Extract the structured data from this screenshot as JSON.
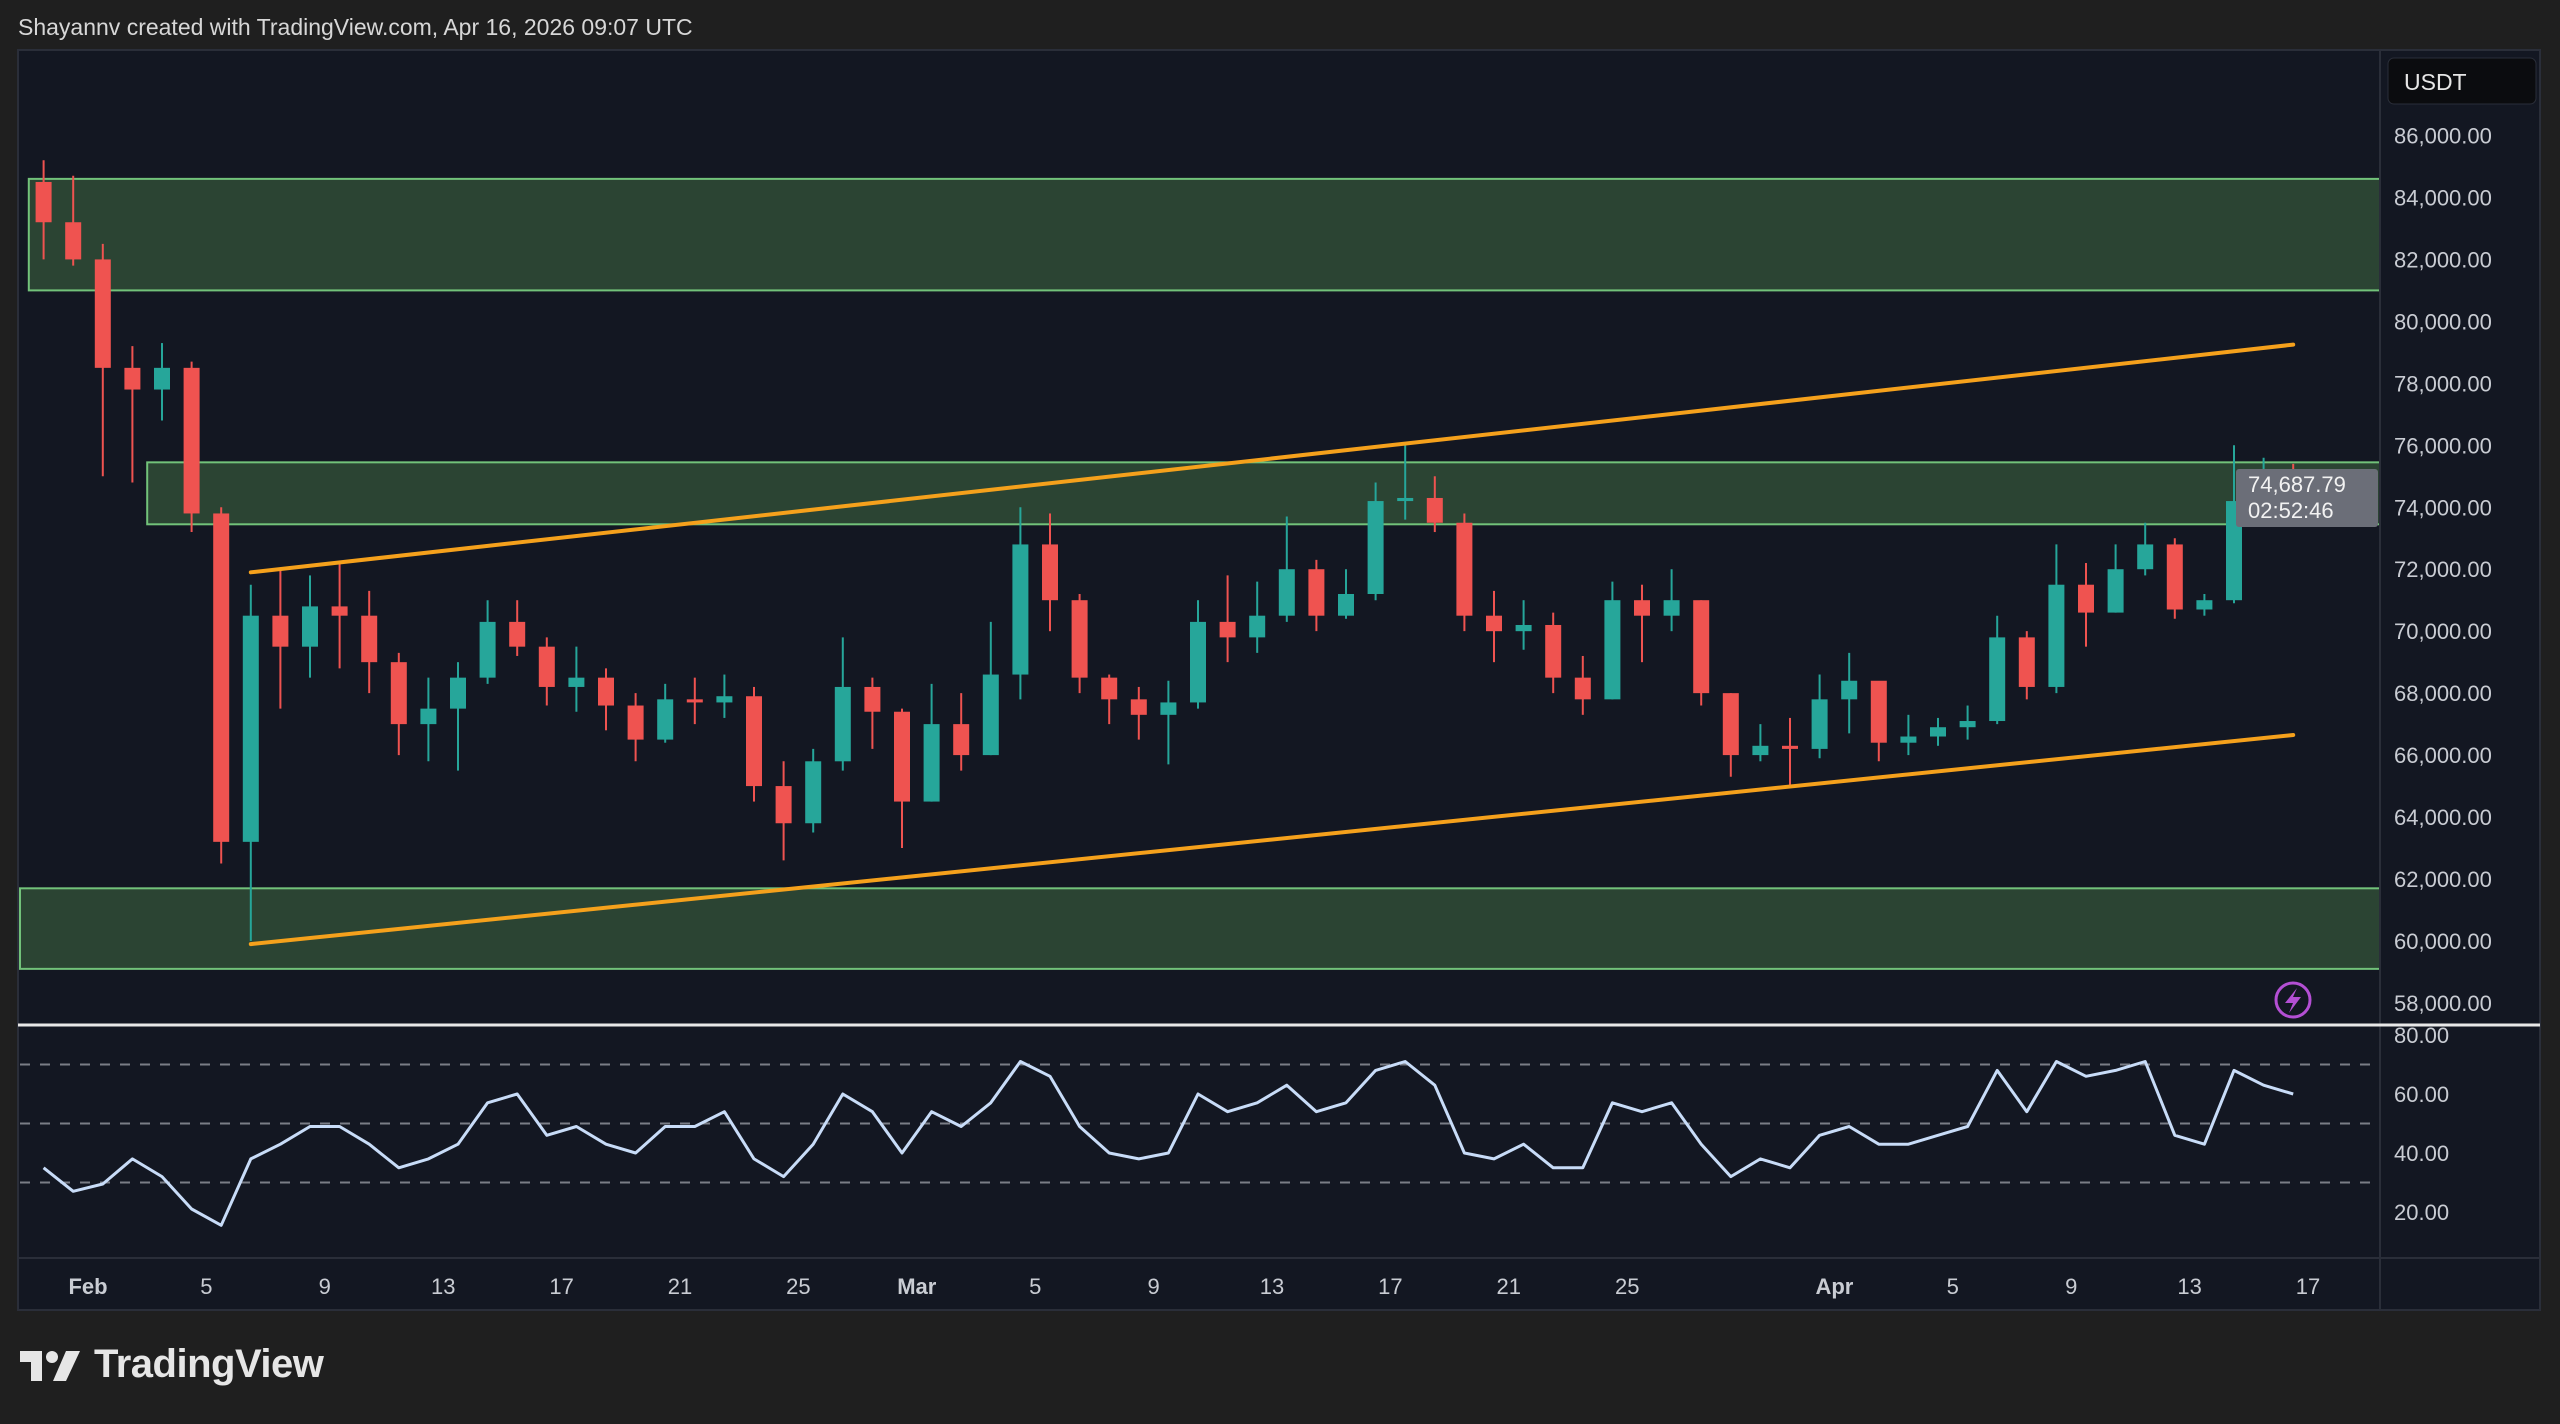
{
  "header": {
    "credit": "Shayannv created with TradingView.com, Apr 16, 2026 09:07 UTC"
  },
  "brand": {
    "logo_text": "TradingView"
  },
  "price_axis": {
    "currency": "USDT",
    "last_price": "74,687.79",
    "countdown": "02:52:46"
  },
  "colors": {
    "up": "#26a69a",
    "down": "#ef5350",
    "zone_fill": "#2b4433",
    "zone_border": "#72c27a",
    "trendline": "#f5a11c",
    "rsi_line": "#c8dcf8",
    "background": "#131722",
    "alert_icon": "#b44fd4"
  },
  "icons": {
    "alert": "lightning-bolt-icon"
  },
  "chart_data": [
    {
      "type": "candlestick",
      "title": "",
      "ylim": [
        57000,
        87500
      ],
      "yticks": [
        58000,
        60000,
        62000,
        64000,
        66000,
        68000,
        70000,
        72000,
        74000,
        76000,
        78000,
        80000,
        82000,
        84000,
        86000
      ],
      "ytick_labels": [
        "58,000.00",
        "60,000.00",
        "62,000.00",
        "64,000.00",
        "66,000.00",
        "68,000.00",
        "70,000.00",
        "72,000.00",
        "74,000.00",
        "76,000.00",
        "78,000.00",
        "80,000.00",
        "82,000.00",
        "84,000.00",
        "86,000.00"
      ],
      "xticks": [
        {
          "date": "2026-02-01",
          "label": "Feb"
        },
        {
          "date": "2026-02-05",
          "label": "5"
        },
        {
          "date": "2026-02-09",
          "label": "9"
        },
        {
          "date": "2026-02-13",
          "label": "13"
        },
        {
          "date": "2026-02-17",
          "label": "17"
        },
        {
          "date": "2026-02-21",
          "label": "21"
        },
        {
          "date": "2026-02-25",
          "label": "25"
        },
        {
          "date": "2026-03-01",
          "label": "Mar"
        },
        {
          "date": "2026-03-05",
          "label": "5"
        },
        {
          "date": "2026-03-09",
          "label": "9"
        },
        {
          "date": "2026-03-13",
          "label": "13"
        },
        {
          "date": "2026-03-17",
          "label": "17"
        },
        {
          "date": "2026-03-21",
          "label": "21"
        },
        {
          "date": "2026-03-25",
          "label": "25"
        },
        {
          "date": "2026-04-01",
          "label": "Apr"
        },
        {
          "date": "2026-04-05",
          "label": "5"
        },
        {
          "date": "2026-04-09",
          "label": "9"
        },
        {
          "date": "2026-04-13",
          "label": "13"
        },
        {
          "date": "2026-04-17",
          "label": "17"
        }
      ],
      "xlim": [
        "2026-01-29",
        "2026-04-19"
      ],
      "candles_columns": [
        "date",
        "open",
        "high",
        "low",
        "close"
      ],
      "candles": [
        [
          "2026-01-30",
          84500,
          85200,
          82000,
          83200
        ],
        [
          "2026-01-31",
          83200,
          84700,
          81800,
          82000
        ],
        [
          "2026-02-01",
          82000,
          82500,
          75000,
          78500
        ],
        [
          "2026-02-02",
          78500,
          79200,
          74800,
          77800
        ],
        [
          "2026-02-03",
          77800,
          79300,
          76800,
          78500
        ],
        [
          "2026-02-04",
          78500,
          78700,
          73200,
          73800
        ],
        [
          "2026-02-05",
          73800,
          74000,
          62500,
          63200
        ],
        [
          "2026-02-06",
          63200,
          71500,
          60000,
          70500
        ],
        [
          "2026-02-07",
          70500,
          72000,
          67500,
          69500
        ],
        [
          "2026-02-08",
          69500,
          71800,
          68500,
          70800
        ],
        [
          "2026-02-09",
          70800,
          72200,
          68800,
          70500
        ],
        [
          "2026-02-10",
          70500,
          71300,
          68000,
          69000
        ],
        [
          "2026-02-11",
          69000,
          69300,
          66000,
          67000
        ],
        [
          "2026-02-12",
          67000,
          68500,
          65800,
          67500
        ],
        [
          "2026-02-13",
          67500,
          69000,
          65500,
          68500
        ],
        [
          "2026-02-14",
          68500,
          71000,
          68300,
          70300
        ],
        [
          "2026-02-15",
          70300,
          71000,
          69200,
          69500
        ],
        [
          "2026-02-16",
          69500,
          69800,
          67600,
          68200
        ],
        [
          "2026-02-17",
          68200,
          69500,
          67400,
          68500
        ],
        [
          "2026-02-18",
          68500,
          68800,
          66800,
          67600
        ],
        [
          "2026-02-19",
          67600,
          68000,
          65800,
          66500
        ],
        [
          "2026-02-20",
          66500,
          68300,
          66400,
          67800
        ],
        [
          "2026-02-21",
          67800,
          68500,
          67000,
          67700
        ],
        [
          "2026-02-22",
          67700,
          68600,
          67200,
          67900
        ],
        [
          "2026-02-23",
          67900,
          68200,
          64500,
          65000
        ],
        [
          "2026-02-24",
          65000,
          65800,
          62600,
          63800
        ],
        [
          "2026-02-25",
          63800,
          66200,
          63500,
          65800
        ],
        [
          "2026-02-26",
          65800,
          69800,
          65500,
          68200
        ],
        [
          "2026-02-27",
          68200,
          68500,
          66200,
          67400
        ],
        [
          "2026-02-28",
          67400,
          67500,
          63000,
          64500
        ],
        [
          "2026-03-01",
          64500,
          68300,
          64500,
          67000
        ],
        [
          "2026-03-02",
          67000,
          68000,
          65500,
          66000
        ],
        [
          "2026-03-03",
          66000,
          70300,
          66000,
          68600
        ],
        [
          "2026-03-04",
          68600,
          74000,
          67800,
          72800
        ],
        [
          "2026-03-05",
          72800,
          73800,
          70000,
          71000
        ],
        [
          "2026-03-06",
          71000,
          71200,
          68000,
          68500
        ],
        [
          "2026-03-07",
          68500,
          68600,
          67000,
          67800
        ],
        [
          "2026-03-08",
          67800,
          68200,
          66500,
          67300
        ],
        [
          "2026-03-09",
          67300,
          68400,
          65700,
          67700
        ],
        [
          "2026-03-10",
          67700,
          71000,
          67500,
          70300
        ],
        [
          "2026-03-11",
          70300,
          71800,
          69000,
          69800
        ],
        [
          "2026-03-12",
          69800,
          71600,
          69300,
          70500
        ],
        [
          "2026-03-13",
          70500,
          73700,
          70300,
          72000
        ],
        [
          "2026-03-14",
          72000,
          72300,
          70000,
          70500
        ],
        [
          "2026-03-15",
          70500,
          72000,
          70400,
          71200
        ],
        [
          "2026-03-16",
          71200,
          74800,
          71000,
          74200
        ],
        [
          "2026-03-17",
          74200,
          76100,
          73600,
          74300
        ],
        [
          "2026-03-18",
          74300,
          75000,
          73200,
          73500
        ],
        [
          "2026-03-19",
          73500,
          73800,
          70000,
          70500
        ],
        [
          "2026-03-20",
          70500,
          71300,
          69000,
          70000
        ],
        [
          "2026-03-21",
          70000,
          71000,
          69400,
          70200
        ],
        [
          "2026-03-22",
          70200,
          70600,
          68000,
          68500
        ],
        [
          "2026-03-23",
          68500,
          69200,
          67300,
          67800
        ],
        [
          "2026-03-24",
          67800,
          71600,
          67800,
          71000
        ],
        [
          "2026-03-25",
          71000,
          71500,
          69000,
          70500
        ],
        [
          "2026-03-26",
          70500,
          72000,
          70000,
          71000
        ],
        [
          "2026-03-27",
          71000,
          71000,
          67600,
          68000
        ],
        [
          "2026-03-28",
          68000,
          68000,
          65300,
          66000
        ],
        [
          "2026-03-29",
          66000,
          67000,
          65800,
          66300
        ],
        [
          "2026-03-30",
          66300,
          67200,
          65000,
          66200
        ],
        [
          "2026-03-31",
          66200,
          68600,
          65900,
          67800
        ],
        [
          "2026-04-01",
          67800,
          69300,
          66700,
          68400
        ],
        [
          "2026-04-02",
          68400,
          68200,
          65800,
          66400
        ],
        [
          "2026-04-03",
          66400,
          67300,
          66000,
          66600
        ],
        [
          "2026-04-04",
          66600,
          67200,
          66300,
          66900
        ],
        [
          "2026-04-05",
          66900,
          67600,
          66500,
          67100
        ],
        [
          "2026-04-06",
          67100,
          70500,
          67000,
          69800
        ],
        [
          "2026-04-07",
          69800,
          70000,
          67800,
          68200
        ],
        [
          "2026-04-08",
          68200,
          72800,
          68000,
          71500
        ],
        [
          "2026-04-09",
          71500,
          72200,
          69500,
          70600
        ],
        [
          "2026-04-10",
          70600,
          72800,
          70600,
          72000
        ],
        [
          "2026-04-11",
          72000,
          73500,
          71800,
          72800
        ],
        [
          "2026-04-12",
          72800,
          73000,
          70400,
          70700
        ],
        [
          "2026-04-13",
          70700,
          71200,
          70500,
          71000
        ],
        [
          "2026-04-14",
          71000,
          76000,
          70900,
          74200
        ],
        [
          "2026-04-15",
          74200,
          75600,
          73400,
          74800
        ],
        [
          "2026-04-16",
          74800,
          75400,
          74400,
          74687.79
        ]
      ],
      "zones": [
        {
          "from_date": "2026-01-30",
          "top": 84600,
          "bottom": 81000
        },
        {
          "from_date": "2026-02-03",
          "top": 75450,
          "bottom": 73450
        },
        {
          "from_date": "2026-01-29",
          "top": 61700,
          "bottom": 59100
        }
      ],
      "trendlines": [
        {
          "start": [
            "2026-02-06",
            71900
          ],
          "end": [
            "2026-04-16",
            79250
          ]
        },
        {
          "start": [
            "2026-02-06",
            59900
          ],
          "end": [
            "2026-04-16",
            66650
          ]
        }
      ],
      "last_price": 74687.79
    },
    {
      "type": "line",
      "title": "",
      "ylim": [
        5,
        82
      ],
      "yticks": [
        20,
        40,
        60,
        80
      ],
      "ytick_labels": [
        "20.00",
        "40.00",
        "60.00",
        "80.00"
      ],
      "levels": [
        30,
        50,
        70
      ],
      "series": [
        {
          "values": [
            [
              "2026-01-30",
              35
            ],
            [
              "2026-01-31",
              27
            ],
            [
              "2026-02-01",
              29.5
            ],
            [
              "2026-02-02",
              38
            ],
            [
              "2026-02-03",
              32
            ],
            [
              "2026-02-04",
              21
            ],
            [
              "2026-02-05",
              15.5
            ],
            [
              "2026-02-06",
              38
            ],
            [
              "2026-02-07",
              43
            ],
            [
              "2026-02-08",
              49
            ],
            [
              "2026-02-09",
              49
            ],
            [
              "2026-02-10",
              43
            ],
            [
              "2026-02-11",
              35
            ],
            [
              "2026-02-12",
              38
            ],
            [
              "2026-02-13",
              43
            ],
            [
              "2026-02-14",
              57
            ],
            [
              "2026-02-15",
              60
            ],
            [
              "2026-02-16",
              46
            ],
            [
              "2026-02-17",
              49
            ],
            [
              "2026-02-18",
              43
            ],
            [
              "2026-02-19",
              40
            ],
            [
              "2026-02-20",
              49
            ],
            [
              "2026-02-21",
              49
            ],
            [
              "2026-02-22",
              54
            ],
            [
              "2026-02-23",
              38
            ],
            [
              "2026-02-24",
              32
            ],
            [
              "2026-02-25",
              43
            ],
            [
              "2026-02-26",
              60
            ],
            [
              "2026-02-27",
              54
            ],
            [
              "2026-02-28",
              40
            ],
            [
              "2026-03-01",
              54
            ],
            [
              "2026-03-02",
              49
            ],
            [
              "2026-03-03",
              57
            ],
            [
              "2026-03-04",
              71
            ],
            [
              "2026-03-05",
              66
            ],
            [
              "2026-03-06",
              49
            ],
            [
              "2026-03-07",
              40
            ],
            [
              "2026-03-08",
              38
            ],
            [
              "2026-03-09",
              40
            ],
            [
              "2026-03-10",
              60
            ],
            [
              "2026-03-11",
              54
            ],
            [
              "2026-03-12",
              57
            ],
            [
              "2026-03-13",
              63
            ],
            [
              "2026-03-14",
              54
            ],
            [
              "2026-03-15",
              57
            ],
            [
              "2026-03-16",
              68
            ],
            [
              "2026-03-17",
              71
            ],
            [
              "2026-03-18",
              63
            ],
            [
              "2026-03-19",
              40
            ],
            [
              "2026-03-20",
              38
            ],
            [
              "2026-03-21",
              43
            ],
            [
              "2026-03-22",
              35
            ],
            [
              "2026-03-23",
              35
            ],
            [
              "2026-03-24",
              57
            ],
            [
              "2026-03-25",
              54
            ],
            [
              "2026-03-26",
              57
            ],
            [
              "2026-03-27",
              43
            ],
            [
              "2026-03-28",
              32
            ],
            [
              "2026-03-29",
              38
            ],
            [
              "2026-03-30",
              35
            ],
            [
              "2026-03-31",
              46
            ],
            [
              "2026-04-01",
              49
            ],
            [
              "2026-04-02",
              43
            ],
            [
              "2026-04-03",
              43
            ],
            [
              "2026-04-04",
              46
            ],
            [
              "2026-04-05",
              49
            ],
            [
              "2026-04-06",
              68
            ],
            [
              "2026-04-07",
              54
            ],
            [
              "2026-04-08",
              71
            ],
            [
              "2026-04-09",
              66
            ],
            [
              "2026-04-10",
              68
            ],
            [
              "2026-04-11",
              71
            ],
            [
              "2026-04-12",
              46
            ],
            [
              "2026-04-13",
              43
            ],
            [
              "2026-04-14",
              68
            ],
            [
              "2026-04-15",
              63
            ],
            [
              "2026-04-16",
              60
            ]
          ]
        }
      ]
    }
  ]
}
